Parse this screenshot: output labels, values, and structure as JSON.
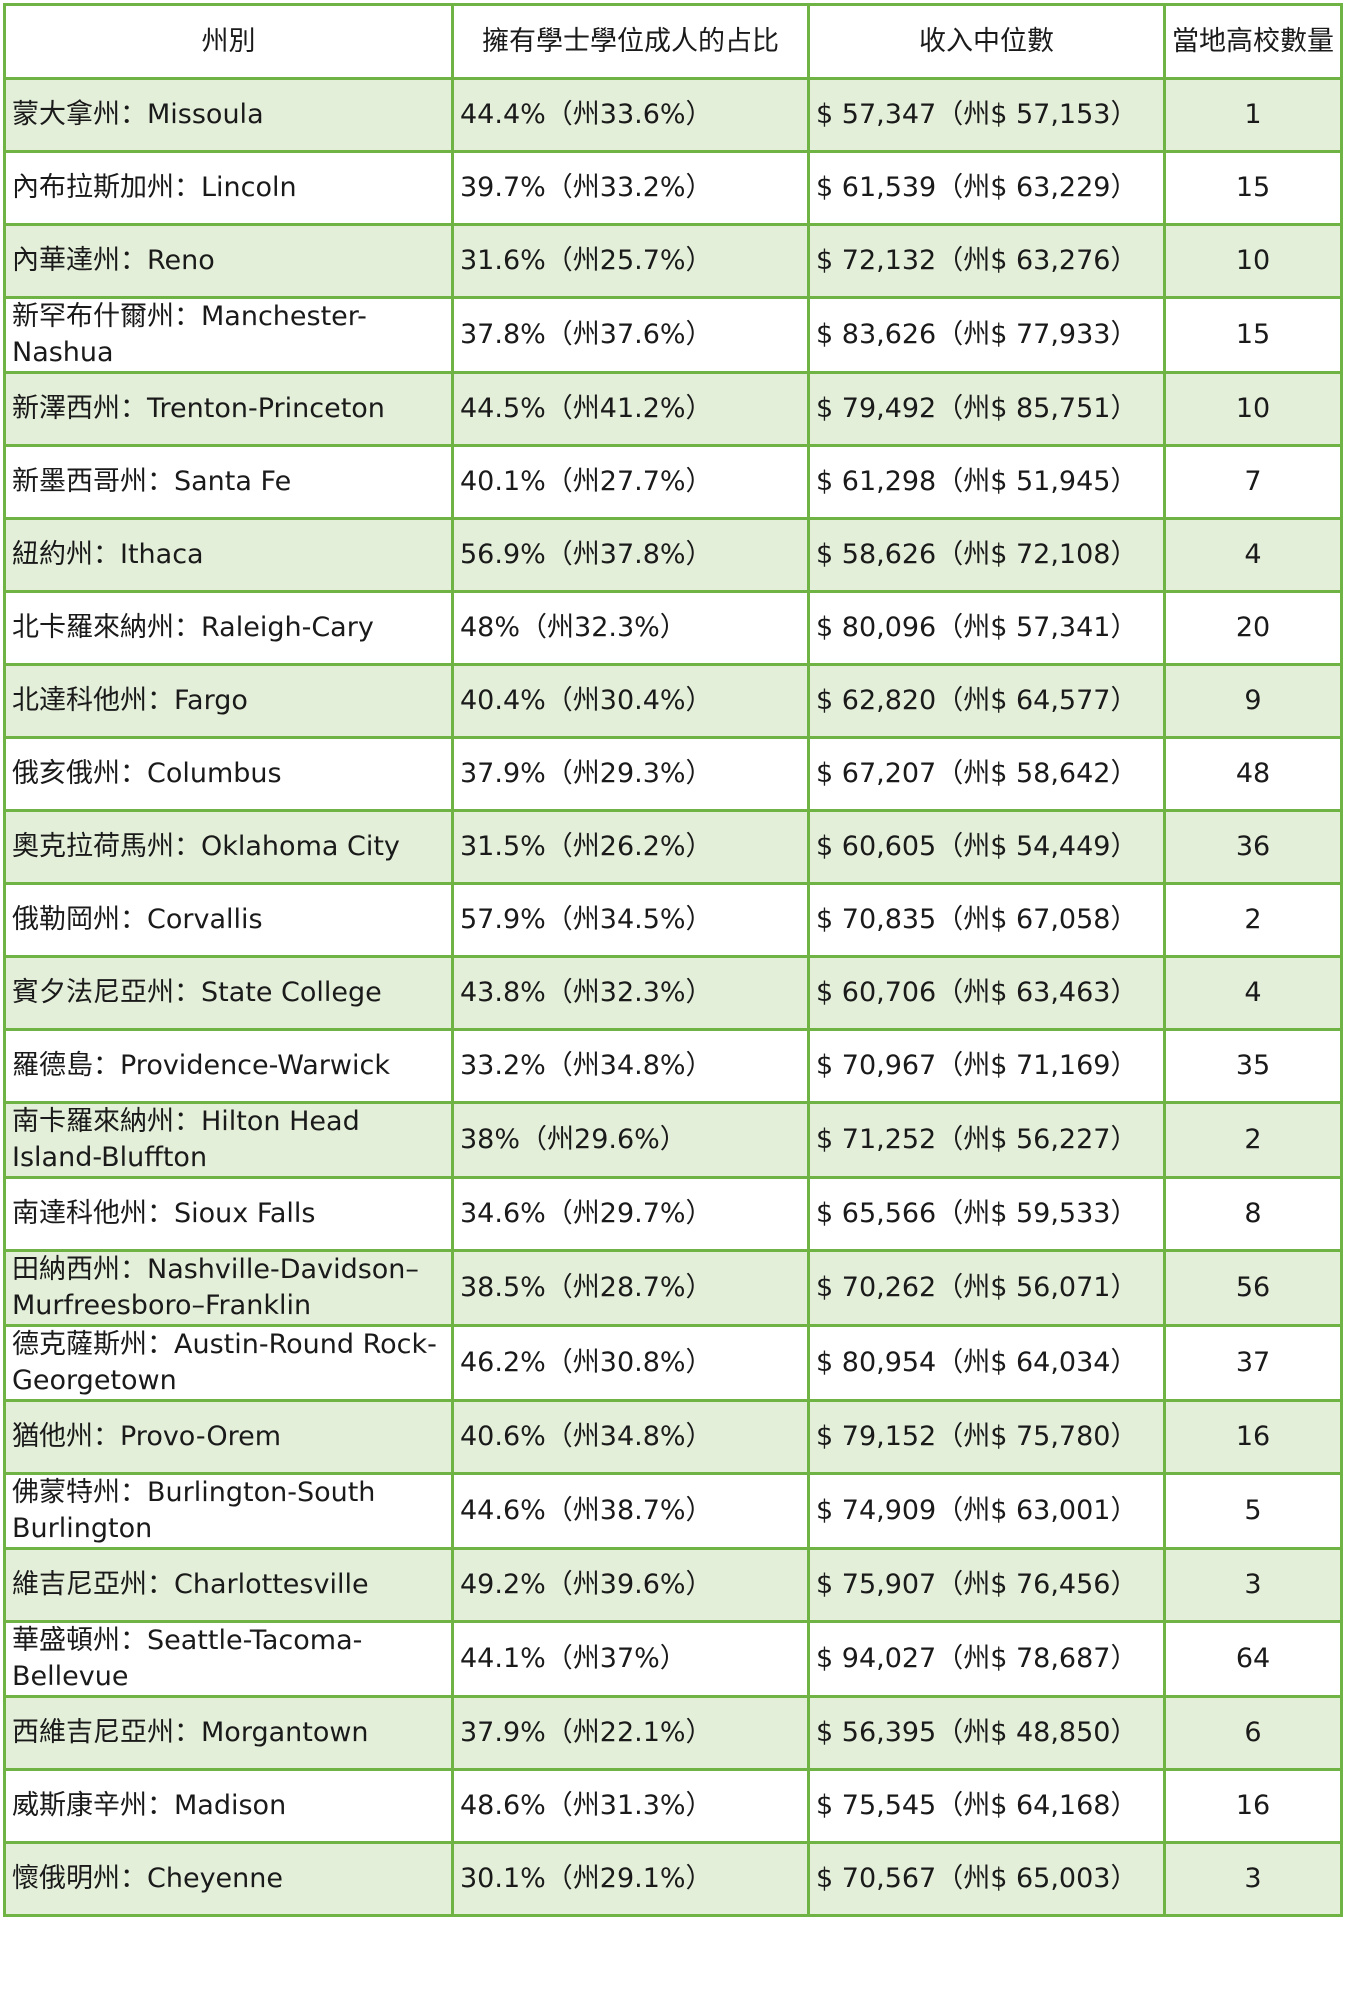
{
  "table": {
    "headers": [
      "州別",
      "擁有學士學位成人的占比",
      "收入中位數",
      "當地高校數量"
    ],
    "rows": [
      {
        "region": "蒙大拿州：Missoula",
        "degree": "44.4%（州33.6%）",
        "income": "$ 57,347（州$ 57,153）",
        "colleges": "1"
      },
      {
        "region": "內布拉斯加州：Lincoln",
        "degree": "39.7%（州33.2%）",
        "income": "$ 61,539（州$ 63,229）",
        "colleges": "15"
      },
      {
        "region": "內華達州：Reno",
        "degree": "31.6%（州25.7%）",
        "income": "$ 72,132（州$ 63,276）",
        "colleges": "10"
      },
      {
        "region": "新罕布什爾州：Manchester-Nashua",
        "degree": "37.8%（州37.6%）",
        "income": "$ 83,626（州$ 77,933）",
        "colleges": "15"
      },
      {
        "region": "新澤西州：Trenton-Princeton",
        "degree": "44.5%（州41.2%）",
        "income": "$ 79,492（州$ 85,751）",
        "colleges": "10"
      },
      {
        "region": "新墨西哥州：Santa Fe",
        "degree": "40.1%（州27.7%）",
        "income": "$ 61,298（州$ 51,945）",
        "colleges": "7"
      },
      {
        "region": "紐約州：Ithaca",
        "degree": "56.9%（州37.8%）",
        "income": "$ 58,626（州$ 72,108）",
        "colleges": "4"
      },
      {
        "region": "北卡羅來納州：Raleigh-Cary",
        "degree": "48%（州32.3%）",
        "income": "$ 80,096（州$ 57,341）",
        "colleges": "20"
      },
      {
        "region": "北達科他州：Fargo",
        "degree": "40.4%（州30.4%）",
        "income": "$ 62,820（州$ 64,577）",
        "colleges": "9"
      },
      {
        "region": "俄亥俄州：Columbus",
        "degree": "37.9%（州29.3%）",
        "income": "$ 67,207（州$ 58,642）",
        "colleges": "48"
      },
      {
        "region": "奧克拉荷馬州：Oklahoma City",
        "degree": "31.5%（州26.2%）",
        "income": "$ 60,605（州$ 54,449）",
        "colleges": "36"
      },
      {
        "region": "俄勒岡州：Corvallis",
        "degree": "57.9%（州34.5%）",
        "income": "$ 70,835（州$ 67,058）",
        "colleges": "2"
      },
      {
        "region": "賓夕法尼亞州：State College",
        "degree": "43.8%（州32.3%）",
        "income": "$ 60,706（州$ 63,463）",
        "colleges": "4"
      },
      {
        "region": "羅德島：Providence-Warwick",
        "degree": "33.2%（州34.8%）",
        "income": "$ 70,967（州$ 71,169）",
        "colleges": "35"
      },
      {
        "region": "南卡羅來納州：Hilton Head Island-Bluffton",
        "degree": "38%（州29.6%）",
        "income": "$ 71,252（州$ 56,227）",
        "colleges": "2"
      },
      {
        "region": "南達科他州：Sioux Falls",
        "degree": "34.6%（州29.7%）",
        "income": "$ 65,566（州$ 59,533）",
        "colleges": "8"
      },
      {
        "region": "田納西州：Nashville-Davidson–Murfreesboro–Franklin",
        "degree": "38.5%（州28.7%）",
        "income": "$ 70,262（州$ 56,071）",
        "colleges": "56"
      },
      {
        "region": "德克薩斯州：Austin-Round Rock-Georgetown",
        "degree": "46.2%（州30.8%）",
        "income": "$ 80,954（州$ 64,034）",
        "colleges": "37"
      },
      {
        "region": "猶他州：Provo-Orem",
        "degree": "40.6%（州34.8%）",
        "income": "$ 79,152（州$ 75,780）",
        "colleges": "16"
      },
      {
        "region": "佛蒙特州：Burlington-South Burlington",
        "degree": "44.6%（州38.7%）",
        "income": "$ 74,909（州$ 63,001）",
        "colleges": "5"
      },
      {
        "region": "維吉尼亞州：Charlottesville",
        "degree": "49.2%（州39.6%）",
        "income": "$ 75,907（州$ 76,456）",
        "colleges": "3"
      },
      {
        "region": "華盛頓州：Seattle-Tacoma-Bellevue",
        "degree": "44.1%（州37%）",
        "income": "$ 94,027（州$ 78,687）",
        "colleges": "64"
      },
      {
        "region": "西維吉尼亞州：Morgantown",
        "degree": "37.9%（州22.1%）",
        "income": "$ 56,395（州$ 48,850）",
        "colleges": "6"
      },
      {
        "region": "威斯康辛州：Madison",
        "degree": "48.6%（州31.3%）",
        "income": "$ 75,545（州$ 64,168）",
        "colleges": "16"
      },
      {
        "region": "懷俄明州：Cheyenne",
        "degree": "30.1%（州29.1%）",
        "income": "$ 70,567（州$ 65,003）",
        "colleges": "3"
      }
    ]
  },
  "colors": {
    "border": "#6fb345",
    "row_shade": "#e3efd9",
    "row_plain": "#ffffff"
  }
}
